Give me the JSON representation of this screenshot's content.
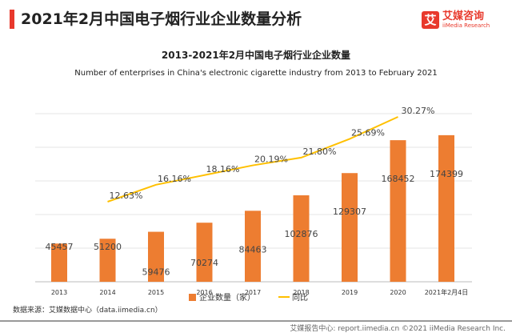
{
  "header": {
    "title": "2021年2月中国电子烟行业企业数量分析",
    "logo_cn": "艾媒咨询",
    "logo_en": "iiMedia Research",
    "logo_mark": "艾"
  },
  "chart_data": {
    "type": "bar+line",
    "title": "2013-2021年2月中国电子烟行业企业数量",
    "subtitle": "Number of enterprises in China's electronic cigarette industry from 2013 to February 2021",
    "categories": [
      "2013",
      "2014",
      "2015",
      "2016",
      "2017",
      "2018",
      "2019",
      "2020",
      "2021年2月4日"
    ],
    "series": [
      {
        "name": "企业数量（家）",
        "type": "bar",
        "color": "#ED7D31",
        "values": [
          45457,
          51200,
          59476,
          70274,
          84463,
          102876,
          129307,
          168452,
          174399
        ],
        "labels": [
          "45457",
          "51200",
          "59476",
          "70274",
          "84463",
          "102876",
          "129307",
          "168452",
          "174399"
        ]
      },
      {
        "name": "同比",
        "type": "line",
        "color": "#FFC000",
        "values": [
          null,
          12.63,
          16.16,
          18.16,
          20.19,
          21.8,
          25.69,
          30.27,
          null
        ],
        "labels": [
          "",
          "12.63%",
          "16.16%",
          "18.16%",
          "20.19%",
          "21.80%",
          "25.69%",
          "30.27%",
          ""
        ]
      }
    ],
    "ylim": [
      0,
      200000
    ],
    "grid": true,
    "legend": "bottom"
  },
  "source": "数据来源：艾媒数据中心（data.iimedia.cn）",
  "footer": "艾媒报告中心: report.iimedia.cn ©2021 iiMedia Research Inc."
}
